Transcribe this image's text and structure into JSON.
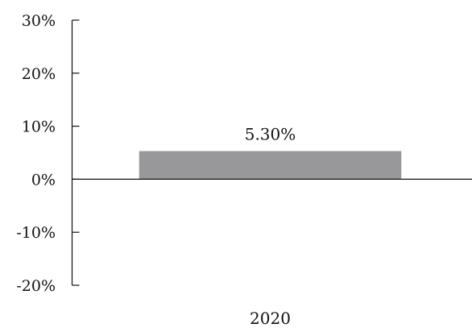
{
  "chart_data": {
    "type": "bar",
    "categories": [
      "2020"
    ],
    "series": [
      {
        "values": [
          5.3
        ]
      }
    ],
    "data_labels": [
      "5.30%"
    ],
    "ylim": [
      -20,
      30
    ],
    "yticks": [
      30,
      20,
      10,
      0,
      -10,
      -20
    ],
    "ytick_labels": [
      "30%",
      "20%",
      "10%",
      "0%",
      "-10%",
      "-20%"
    ],
    "grid": false,
    "legend": "none",
    "title": "",
    "xlabel": "",
    "ylabel": ""
  },
  "colors": {
    "bar": "#98989b",
    "axis": "#111111"
  }
}
